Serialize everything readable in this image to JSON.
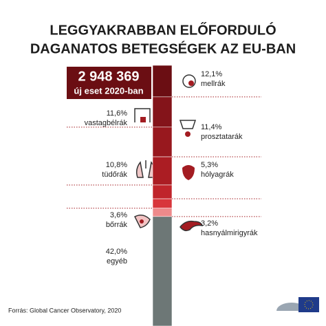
{
  "chart_data": {
    "type": "stacked-column",
    "title": [
      "LEGGYAKRABBAN ELŐFORDULÓ",
      "DAGANATOS BETEGSÉGEK AZ EU-BAN"
    ],
    "total": "2 948 369",
    "total_label": "új eset 2020-ban",
    "categories": [
      "mellrák",
      "vastagbélrák",
      "prosztatarák",
      "tüdőrák",
      "hólyagrák",
      "bőrrák",
      "hasnyálmirigyrák",
      "egyéb"
    ],
    "values": [
      12.1,
      11.6,
      11.4,
      10.8,
      5.3,
      3.6,
      3.2,
      42.0
    ],
    "value_labels": [
      "12,1%",
      "11,6%",
      "11,4%",
      "10,8%",
      "5,3%",
      "3,6%",
      "3,2%",
      "42,0%"
    ],
    "colors": [
      "#6b0e13",
      "#84141a",
      "#98181e",
      "#ab1d23",
      "#c0252b",
      "#d8363b",
      "#ee8a8b",
      "#6d7776"
    ],
    "source": "Forrás: Global Cancer Observatory, 2020"
  }
}
